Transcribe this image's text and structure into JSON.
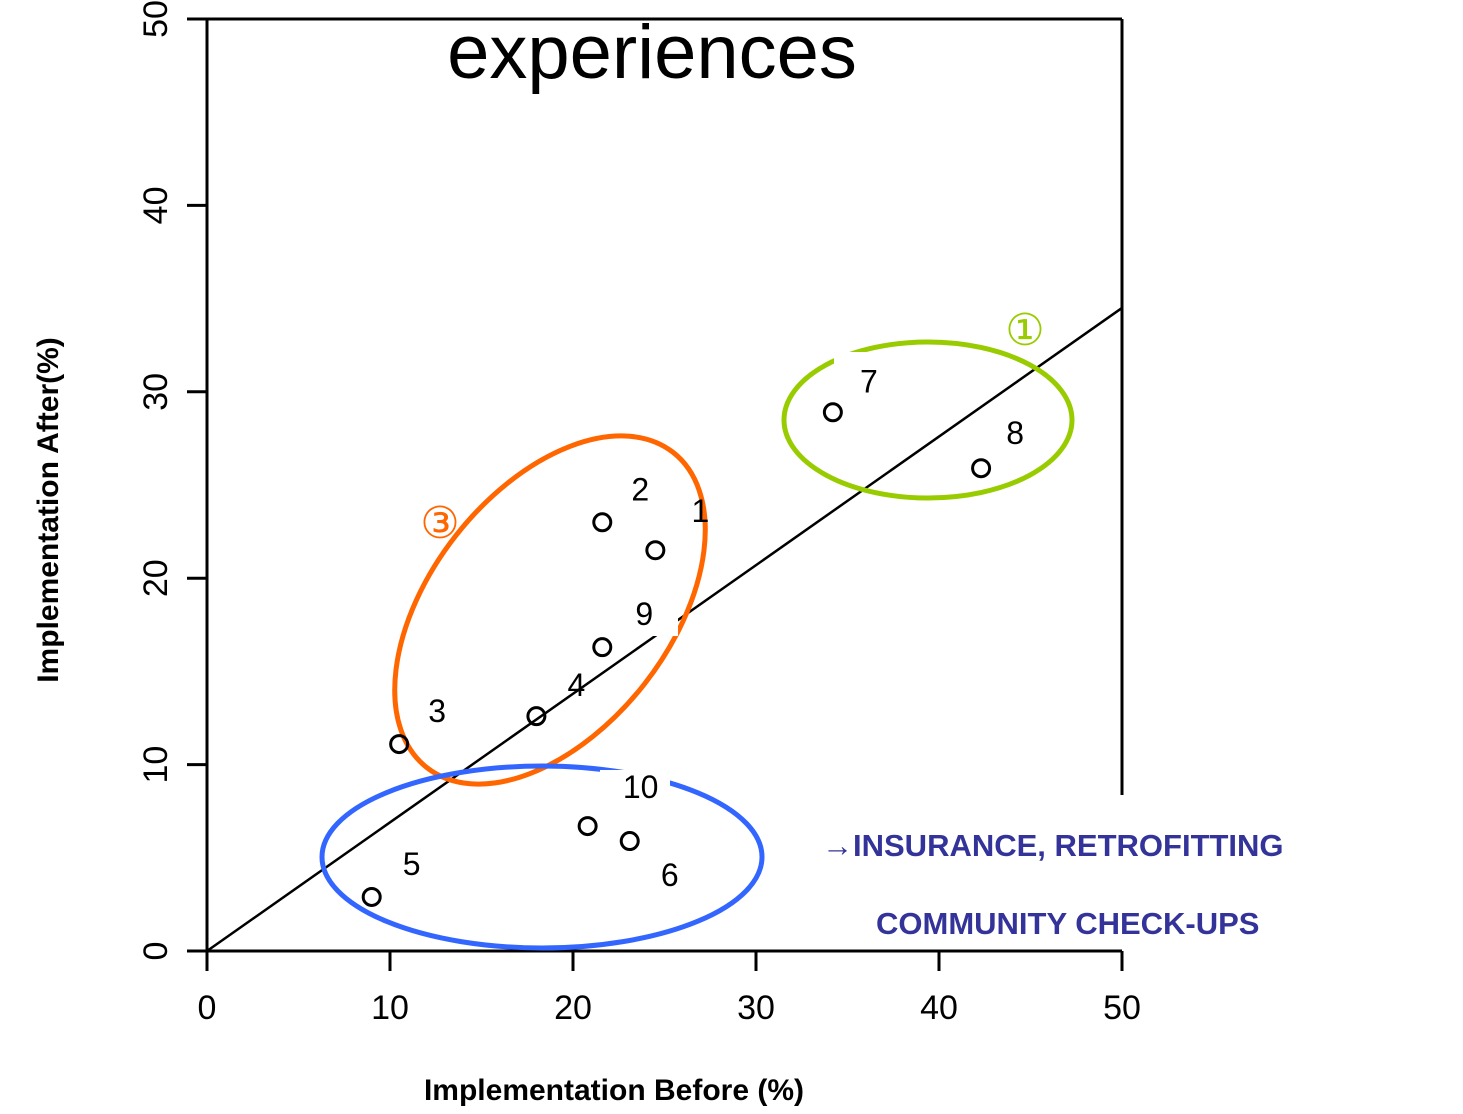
{
  "chart_data": {
    "type": "scatter",
    "title": "experiences",
    "xlabel": "Implementation Before (%)",
    "ylabel": "Implementation After(%)",
    "xlim": [
      0,
      50
    ],
    "ylim": [
      0,
      50
    ],
    "xticks": [
      0,
      10,
      20,
      30,
      40,
      50
    ],
    "yticks": [
      0,
      10,
      20,
      30,
      40,
      50
    ],
    "grid": false,
    "points": [
      {
        "label": "1",
        "x": 24.5,
        "y": 21.5
      },
      {
        "label": "2",
        "x": 21.6,
        "y": 23.0
      },
      {
        "label": "3",
        "x": 10.5,
        "y": 11.1
      },
      {
        "label": "4",
        "x": 18.0,
        "y": 12.6
      },
      {
        "label": "5",
        "x": 9.0,
        "y": 2.9
      },
      {
        "label": "6",
        "x": 23.1,
        "y": 5.9
      },
      {
        "label": "7",
        "x": 34.2,
        "y": 28.9
      },
      {
        "label": "8",
        "x": 42.3,
        "y": 25.9
      },
      {
        "label": "9",
        "x": 21.6,
        "y": 16.3
      },
      {
        "label": "10",
        "x": 20.8,
        "y": 6.7
      }
    ],
    "trend_line": {
      "x": [
        0,
        50
      ],
      "y": [
        0,
        34.5
      ]
    },
    "groups": [
      {
        "label": "①",
        "color": "#99cc00",
        "members": [
          "7",
          "8"
        ]
      },
      {
        "label": "③",
        "color": "#ff6600",
        "members": [
          "1",
          "2",
          "3",
          "4",
          "9"
        ]
      },
      {
        "label": "",
        "color": "#3366ff",
        "members": [
          "5",
          "6",
          "10"
        ]
      }
    ],
    "annotations": [
      "→INSURANCE, RETROFITTING",
      "COMMUNITY CHECK-UPS"
    ],
    "annotation_color": "#333399"
  }
}
